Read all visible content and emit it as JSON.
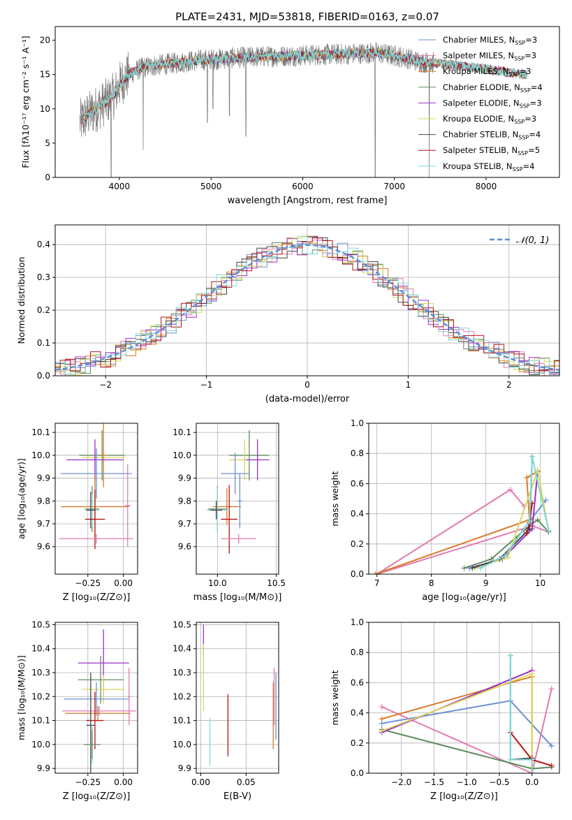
{
  "figure_title": "PLATE=2431, MJD=53818, FIBERID=0163, z=0.07",
  "palette": [
    "#6b8fd6",
    "#e07bb0",
    "#d87a2a",
    "#5f8c60",
    "#9a2fc8",
    "#d8d85a",
    "#444444",
    "#b81414",
    "#80d8d8"
  ],
  "chart_data": [
    {
      "id": "spectrum",
      "type": "line",
      "title": "PLATE=2431, MJD=53818, FIBERID=0163, z=0.07",
      "xlabel": "wavelength [Angstrom, rest frame]",
      "ylabel": "Flux [fλ10⁻¹⁷ erg cm⁻² s⁻¹ A⁻¹]",
      "xlim": [
        3300,
        8800
      ],
      "ylim": [
        0,
        22
      ],
      "xticks": [
        4000,
        5000,
        6000,
        7000,
        8000
      ],
      "yticks": [
        0,
        5,
        10,
        15,
        20
      ],
      "legend_position": "upper right",
      "legend": [
        {
          "label": "Chabrier MILES, N",
          "sub": "SSP",
          "n": "=3",
          "color": "#6b8fd6"
        },
        {
          "label": "Salpeter MILES, N",
          "sub": "SSP",
          "n": "=3",
          "color": "#e07bb0"
        },
        {
          "label": "Kroupa MILES, N",
          "sub": "SSP",
          "n": "=3",
          "color": "#d87a2a"
        },
        {
          "label": "Chabrier ELODIE, N",
          "sub": "SSP",
          "n": "=4",
          "color": "#5f8c60"
        },
        {
          "label": "Salpeter ELODIE, N",
          "sub": "SSP",
          "n": "=3",
          "color": "#9a2fc8"
        },
        {
          "label": "Kroupa ELODIE, N",
          "sub": "SSP",
          "n": "=3",
          "color": "#d8d85a"
        },
        {
          "label": "Chabrier STELIB, N",
          "sub": "SSP",
          "n": "=4",
          "color": "#444444"
        },
        {
          "label": "Salpeter STELIB, N",
          "sub": "SSP",
          "n": "=5",
          "color": "#b81414"
        },
        {
          "label": "Kroupa STELIB, N",
          "sub": "SSP",
          "n": "=4",
          "color": "#80d8d8"
        }
      ],
      "continuum": [
        [
          3570,
          8
        ],
        [
          3650,
          9
        ],
        [
          3750,
          10
        ],
        [
          3850,
          11
        ],
        [
          3950,
          12
        ],
        [
          4000,
          13.5
        ],
        [
          4100,
          15
        ],
        [
          4250,
          16
        ],
        [
          4500,
          16.5
        ],
        [
          4800,
          17
        ],
        [
          5100,
          17.3
        ],
        [
          5500,
          17.6
        ],
        [
          6000,
          17.8
        ],
        [
          6500,
          18
        ],
        [
          6800,
          18.2
        ],
        [
          7100,
          17.5
        ],
        [
          7300,
          16.8
        ],
        [
          7500,
          16.6
        ],
        [
          7700,
          16.3
        ],
        [
          8000,
          15.8
        ],
        [
          8300,
          15.2
        ],
        [
          8500,
          14.8
        ]
      ],
      "drops": [
        [
          3910,
          0
        ],
        [
          4260,
          4
        ],
        [
          4960,
          8
        ],
        [
          5020,
          10
        ],
        [
          5200,
          9
        ],
        [
          5380,
          6
        ],
        [
          6790,
          0
        ],
        [
          7380,
          0
        ]
      ],
      "model_range": [
        3570,
        8450
      ],
      "data_range": [
        3570,
        7430
      ]
    },
    {
      "id": "residuals",
      "type": "histogram",
      "xlabel": "(data-model)/error",
      "ylabel": "Normed distribution",
      "xlim": [
        -2.5,
        2.5
      ],
      "ylim": [
        0,
        0.46
      ],
      "xticks": [
        -2,
        -1,
        0,
        1,
        2
      ],
      "xtick_labels": [
        "−2",
        "−1",
        "0",
        "1",
        "2"
      ],
      "yticks": [
        0.0,
        0.1,
        0.2,
        0.3,
        0.4
      ],
      "bin_width": 0.1,
      "reference_curve": {
        "name": "𝒩(0, 1)",
        "mean": 0,
        "sigma": 1,
        "color": "#5b8ddb"
      },
      "legend_position": "upper right",
      "grid": true
    },
    {
      "id": "age-vs-Z",
      "type": "scatter",
      "xlabel": "Z [log₁₀(Z/Z⊙)]",
      "ylabel": "age  [log₁₀(age/yr)]",
      "xlim": [
        -0.48,
        0.1
      ],
      "ylim": [
        9.48,
        10.14
      ],
      "xticks": [
        -0.25,
        0.0
      ],
      "xtick_labels": [
        "−0.25",
        "0.00"
      ],
      "yticks": [
        9.6,
        9.7,
        9.8,
        9.9,
        10.0,
        10.1
      ],
      "grid": true,
      "points": [
        {
          "x": -0.15,
          "y": 10.0,
          "xerr": 0.16,
          "yerr": 0.11,
          "color": "#5f8c60"
        },
        {
          "x": -0.14,
          "y": 9.99,
          "xerr": 0.15,
          "yerr": 0.1,
          "color": "#d8d85a"
        },
        {
          "x": -0.14,
          "y": 10.0,
          "xerr": 0.02,
          "yerr": 0.14,
          "color": "#d87a2a"
        },
        {
          "x": -0.2,
          "y": 9.98,
          "xerr": 0.2,
          "yerr": 0.09,
          "color": "#9a2fc8"
        },
        {
          "x": -0.19,
          "y": 9.92,
          "xerr": 0.25,
          "yerr": 0.11,
          "color": "#6b8fd6"
        },
        {
          "x": -0.2,
          "y": 9.775,
          "xerr": 0.24,
          "yerr": 0.14,
          "color": "#d87a2a"
        },
        {
          "x": -0.22,
          "y": 9.765,
          "xerr": 0.05,
          "yerr": 0.1,
          "color": "#5f8c60"
        },
        {
          "x": -0.22,
          "y": 9.76,
          "xerr": 0.05,
          "yerr": 0.07,
          "color": "#80d8d8"
        },
        {
          "x": -0.2,
          "y": 9.72,
          "xerr": 0.07,
          "yerr": 0.13,
          "color": "#b81414"
        },
        {
          "x": -0.23,
          "y": 9.76,
          "xerr": 0.03,
          "yerr": 0.08,
          "color": "#444444"
        },
        {
          "x": 0.03,
          "y": 9.78,
          "xerr": 0.02,
          "yerr": 0.18,
          "color": "#e07bb0"
        },
        {
          "x": -0.19,
          "y": 9.635,
          "xerr": 0.26,
          "yerr": 0.02,
          "color": "#e07bb0"
        }
      ]
    },
    {
      "id": "age-vs-mass",
      "type": "scatter",
      "xlabel": "mass [log₁₀(M/M⊙)]",
      "ylabel": "",
      "xlim": [
        9.82,
        10.52
      ],
      "ylim": [
        9.48,
        10.14
      ],
      "xticks": [
        10.0,
        10.5
      ],
      "xtick_labels": [
        "10.0",
        "10.5"
      ],
      "yticks": [
        9.6,
        9.7,
        9.8,
        9.9,
        10.0,
        10.1
      ],
      "grid": true,
      "points": [
        {
          "x": 10.27,
          "y": 10.0,
          "xerr": 0.17,
          "yerr": 0.11,
          "color": "#5f8c60"
        },
        {
          "x": 10.23,
          "y": 9.98,
          "xerr": 0.13,
          "yerr": 0.09,
          "color": "#d8d85a"
        },
        {
          "x": 10.34,
          "y": 9.98,
          "xerr": 0.1,
          "yerr": 0.09,
          "color": "#9a2fc8"
        },
        {
          "x": 10.15,
          "y": 9.92,
          "xerr": 0.12,
          "yerr": 0.09,
          "color": "#6b8fd6"
        },
        {
          "x": 10.08,
          "y": 9.775,
          "xerr": 0.12,
          "yerr": 0.08,
          "color": "#d87a2a"
        },
        {
          "x": 10.0,
          "y": 9.765,
          "xerr": 0.08,
          "yerr": 0.1,
          "color": "#5f8c60"
        },
        {
          "x": 10.0,
          "y": 9.76,
          "xerr": 0.09,
          "yerr": 0.1,
          "color": "#80d8d8"
        },
        {
          "x": 10.1,
          "y": 9.72,
          "xerr": 0.07,
          "yerr": 0.15,
          "color": "#b81414"
        },
        {
          "x": 9.99,
          "y": 9.76,
          "xerr": 0.05,
          "yerr": 0.04,
          "color": "#444444"
        },
        {
          "x": 10.19,
          "y": 9.8,
          "xerr": 0.02,
          "yerr": 0.12,
          "color": "#6b8fd6"
        },
        {
          "x": 10.18,
          "y": 9.635,
          "xerr": 0.15,
          "yerr": 0.02,
          "color": "#e07bb0"
        }
      ]
    },
    {
      "id": "mass-weight-vs-age",
      "type": "line",
      "xlabel": "age  [log₁₀(age/yr)]",
      "ylabel": "mass weight",
      "xlim": [
        6.85,
        10.35
      ],
      "ylim": [
        0,
        1
      ],
      "xticks": [
        7,
        8,
        9,
        10
      ],
      "yticks": [
        0.0,
        0.2,
        0.4,
        0.6,
        0.8,
        1.0
      ],
      "grid": true,
      "series": [
        {
          "color": "#6b8fd6",
          "x": [
            8.7,
            9.3,
            9.8,
            10.1
          ],
          "y": [
            0.04,
            0.1,
            0.35,
            0.49
          ]
        },
        {
          "color": "#e07bb0",
          "x": [
            9.7,
            9.45,
            7.0,
            9.85,
            10.15
          ],
          "y": [
            0.45,
            0.56,
            0.0,
            0.32,
            0.28
          ]
        },
        {
          "color": "#d87a2a",
          "x": [
            6.97,
            9.8,
            9.75,
            9.95
          ],
          "y": [
            0.0,
            0.36,
            0.64,
            0.68
          ]
        },
        {
          "color": "#5f8c60",
          "x": [
            8.6,
            9.1,
            9.7,
            9.95,
            10.15
          ],
          "y": [
            0.04,
            0.1,
            0.29,
            0.36,
            0.28
          ]
        },
        {
          "color": "#9a2fc8",
          "x": [
            8.8,
            9.3,
            9.85,
            9.95
          ],
          "y": [
            0.05,
            0.1,
            0.3,
            0.68
          ]
        },
        {
          "color": "#d8d85a",
          "x": [
            8.8,
            9.4,
            9.95,
            10.15
          ],
          "y": [
            0.04,
            0.11,
            0.69,
            0.29
          ]
        },
        {
          "color": "#444444",
          "x": [
            8.75,
            9.25,
            9.8,
            9.85
          ],
          "y": [
            0.04,
            0.1,
            0.3,
            0.78
          ]
        },
        {
          "color": "#b81414",
          "x": [
            9.75,
            9.8,
            9.85
          ],
          "y": [
            0.27,
            0.34,
            0.47
          ]
        },
        {
          "color": "#80d8d8",
          "x": [
            8.9,
            9.35,
            9.8,
            9.85,
            10.15
          ],
          "y": [
            0.04,
            0.12,
            0.35,
            0.78,
            0.29
          ]
        }
      ]
    },
    {
      "id": "mass-vs-Z",
      "type": "scatter",
      "xlabel": "Z [log₁₀(Z/Z⊙)]",
      "ylabel": "mass [log₁₀(M/M⊙)]",
      "xlim": [
        -0.48,
        0.1
      ],
      "ylim": [
        9.88,
        10.51
      ],
      "xticks": [
        -0.25,
        0.0
      ],
      "xtick_labels": [
        "−0.25",
        "0.00"
      ],
      "yticks": [
        9.9,
        10.0,
        10.1,
        10.2,
        10.3,
        10.4,
        10.5
      ],
      "grid": true,
      "points": [
        {
          "x": -0.14,
          "y": 10.34,
          "xerr": 0.18,
          "yerr": 0.14,
          "color": "#9a2fc8"
        },
        {
          "x": -0.16,
          "y": 10.27,
          "xerr": 0.16,
          "yerr": 0.1,
          "color": "#5f8c60"
        },
        {
          "x": -0.14,
          "y": 10.23,
          "xerr": 0.15,
          "yerr": 0.06,
          "color": "#d8d85a"
        },
        {
          "x": -0.19,
          "y": 10.19,
          "xerr": 0.23,
          "yerr": 0.07,
          "color": "#6b8fd6"
        },
        {
          "x": -0.17,
          "y": 10.14,
          "xerr": 0.26,
          "yerr": 0.02,
          "color": "#e07bb0"
        },
        {
          "x": -0.18,
          "y": 10.13,
          "xerr": 0.23,
          "yerr": 0.03,
          "color": "#d87a2a"
        },
        {
          "x": -0.2,
          "y": 10.1,
          "xerr": 0.06,
          "yerr": 0.12,
          "color": "#b81414"
        },
        {
          "x": -0.23,
          "y": 10.08,
          "xerr": 0.03,
          "yerr": 0.22,
          "color": "#444444"
        },
        {
          "x": -0.22,
          "y": 10.0,
          "xerr": 0.06,
          "yerr": 0.08,
          "color": "#80d8d8"
        },
        {
          "x": -0.22,
          "y": 10.0,
          "xerr": 0.06,
          "yerr": 0.06,
          "color": "#5f8c60"
        },
        {
          "x": 0.04,
          "y": 10.2,
          "xerr": 0.01,
          "yerr": 0.12,
          "color": "#e07bb0"
        }
      ]
    },
    {
      "id": "mass-vs-ebv",
      "type": "scatter",
      "xlabel": "E(B-V)",
      "ylabel": "",
      "xlim": [
        -0.005,
        0.086
      ],
      "ylim": [
        9.88,
        10.51
      ],
      "xticks": [
        0.0,
        0.05
      ],
      "xtick_labels": [
        "0.00",
        "0.05"
      ],
      "yticks": [
        9.9,
        10.0,
        10.1,
        10.2,
        10.3,
        10.4,
        10.5
      ],
      "grid": true,
      "points": [
        {
          "x": 0.003,
          "y": 10.43,
          "xerr": 0,
          "yerr": 0.07,
          "color": "#9a2fc8"
        },
        {
          "x": 0.003,
          "y": 10.28,
          "xerr": 0,
          "yerr": 0.14,
          "color": "#d8d85a"
        },
        {
          "x": 0.01,
          "y": 10.01,
          "xerr": 0,
          "yerr": 0.1,
          "color": "#80d8d8"
        },
        {
          "x": 0.03,
          "y": 10.08,
          "xerr": 0,
          "yerr": 0.13,
          "color": "#b81414"
        },
        {
          "x": 0.08,
          "y": 10.12,
          "xerr": 0,
          "yerr": 0.14,
          "color": "#d87a2a"
        },
        {
          "x": 0.081,
          "y": 10.2,
          "xerr": 0,
          "yerr": 0.12,
          "color": "#e07bb0"
        },
        {
          "x": 0.083,
          "y": 10.16,
          "xerr": 0,
          "yerr": 0.14,
          "color": "#6b8fd6"
        }
      ]
    },
    {
      "id": "mass-weight-vs-Z",
      "type": "line",
      "xlabel": "Z [log₁₀(Z/Z⊙)]",
      "ylabel": "mass weight",
      "xlim": [
        -2.5,
        0.42
      ],
      "ylim": [
        0,
        1
      ],
      "xticks": [
        -2.0,
        -1.5,
        -1.0,
        -0.5,
        0.0
      ],
      "xtick_labels": [
        "−2.0",
        "−1.5",
        "−1.0",
        "−0.5",
        "0.0"
      ],
      "yticks": [
        0.0,
        0.2,
        0.4,
        0.6,
        0.8,
        1.0
      ],
      "grid": true,
      "series": [
        {
          "color": "#6b8fd6",
          "x": [
            -2.3,
            -0.33,
            0.3
          ],
          "y": [
            0.33,
            0.48,
            0.18
          ]
        },
        {
          "color": "#e07bb0",
          "x": [
            -2.3,
            0.0,
            0.3
          ],
          "y": [
            0.44,
            0.0,
            0.56
          ]
        },
        {
          "color": "#d87a2a",
          "x": [
            -2.3,
            0.0,
            0.0
          ],
          "y": [
            0.36,
            0.64,
            0.0
          ]
        },
        {
          "color": "#5f8c60",
          "x": [
            -2.3,
            0.0,
            0.3
          ],
          "y": [
            0.29,
            0.03,
            0.04
          ]
        },
        {
          "color": "#9a2fc8",
          "x": [
            -2.3,
            0.0
          ],
          "y": [
            0.27,
            0.68
          ]
        },
        {
          "color": "#d8d85a",
          "x": [
            -2.3,
            0.0,
            0.0
          ],
          "y": [
            0.28,
            0.66,
            0.04
          ]
        },
        {
          "color": "#444444",
          "x": [
            -0.33,
            -0.33,
            0.0
          ],
          "y": [
            0.78,
            0.09,
            0.1
          ]
        },
        {
          "color": "#b81414",
          "x": [
            -0.33,
            0.0,
            0.3
          ],
          "y": [
            0.27,
            0.09,
            0.05
          ]
        },
        {
          "color": "#80d8d8",
          "x": [
            -0.33,
            -0.33,
            0.0,
            0.0
          ],
          "y": [
            0.78,
            0.09,
            0.09,
            0.0
          ]
        }
      ]
    }
  ]
}
